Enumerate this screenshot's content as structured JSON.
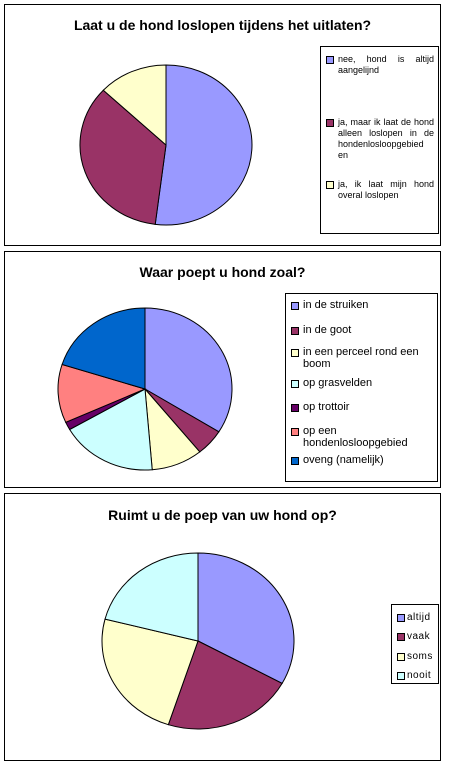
{
  "chart_data": [
    {
      "type": "pie",
      "title": "Laat u de hond loslopen tijdens het uitlaten?",
      "legend_position": "right",
      "series": [
        {
          "labels": [
            "nee, hond is altijd aangelijnd",
            "ja, maar ik laat de hond alleen loslopen in de hondenlosloopgebied en",
            "ja, ik laat mijn hond overal loslopen"
          ],
          "values": [
            52,
            35,
            13
          ],
          "colors": [
            "#9999FF",
            "#993366",
            "#FFFFCC"
          ]
        }
      ]
    },
    {
      "type": "pie",
      "title": "Waar poept u hond zoal?",
      "legend_position": "right",
      "series": [
        {
          "labels": [
            "in de struiken",
            "in de goot",
            "in een perceel rond een boom",
            "op grasvelden",
            "op trottoir",
            "op een hondenlosloopgebied",
            "oveng (namelijk)"
          ],
          "values": [
            32,
            5,
            9,
            17,
            1.5,
            11,
            19
          ],
          "colors": [
            "#9999FF",
            "#993366",
            "#FFFFCC",
            "#CCFFFF",
            "#660066",
            "#FF8080",
            "#0066CC"
          ]
        }
      ]
    },
    {
      "type": "pie",
      "title": "Ruimt u de poep van uw hond op?",
      "legend_position": "right",
      "series": [
        {
          "labels": [
            "altijd",
            "vaak",
            "soms",
            "nooit"
          ],
          "values": [
            33,
            22,
            24,
            21
          ],
          "colors": [
            "#9999FF",
            "#993366",
            "#FFFFCC",
            "#CCFFFF"
          ]
        }
      ]
    }
  ]
}
